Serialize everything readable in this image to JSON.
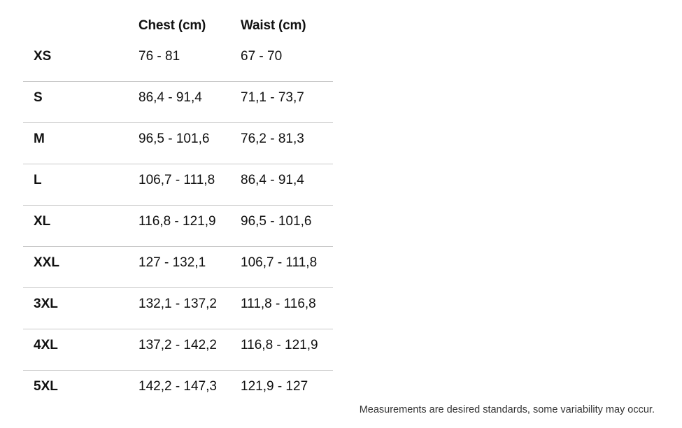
{
  "table": {
    "headers": {
      "size": "",
      "chest": "Chest (cm)",
      "waist": "Waist (cm)"
    },
    "rows": [
      {
        "size": "XS",
        "chest": "76 - 81",
        "waist": "67 - 70"
      },
      {
        "size": "S",
        "chest": "86,4 - 91,4",
        "waist": "71,1 - 73,7"
      },
      {
        "size": "M",
        "chest": "96,5 - 101,6",
        "waist": "76,2 - 81,3"
      },
      {
        "size": "L",
        "chest": "106,7 - 111,8",
        "waist": "86,4 - 91,4"
      },
      {
        "size": "XL",
        "chest": "116,8 - 121,9",
        "waist": "96,5 - 101,6"
      },
      {
        "size": "XXL",
        "chest": "127 - 132,1",
        "waist": "106,7 - 111,8"
      },
      {
        "size": "3XL",
        "chest": "132,1 - 137,2",
        "waist": "111,8 - 116,8"
      },
      {
        "size": "4XL",
        "chest": "137,2 - 142,2",
        "waist": "116,8 - 121,9"
      },
      {
        "size": "5XL",
        "chest": "142,2 - 147,3",
        "waist": "121,9 - 127"
      }
    ]
  },
  "footnote": "Measurements are desired standards, some variability may occur."
}
